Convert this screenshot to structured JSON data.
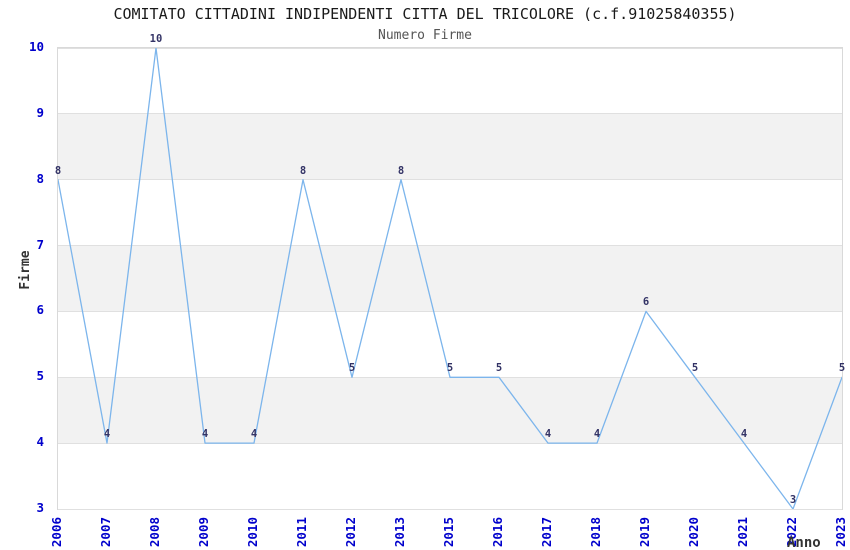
{
  "chart_data": {
    "type": "line",
    "title": "COMITATO CITTADINI INDIPENDENTI CITTA DEL TRICOLORE (c.f.91025840355)",
    "subtitle": "Numero Firme",
    "xlabel": "Anno",
    "ylabel": "Firme",
    "categories": [
      "2006",
      "2007",
      "2008",
      "2009",
      "2010",
      "2011",
      "2012",
      "2013",
      "2015",
      "2016",
      "2017",
      "2018",
      "2019",
      "2020",
      "2021",
      "2022",
      "2023"
    ],
    "values": [
      8,
      4,
      10,
      4,
      4,
      8,
      5,
      8,
      5,
      5,
      4,
      4,
      6,
      5,
      4,
      3,
      5
    ],
    "data_labels_shown": true,
    "ylim": [
      3,
      10
    ],
    "yticks": [
      3,
      4,
      5,
      6,
      7,
      8,
      9,
      10
    ],
    "plot_bands": [
      [
        9,
        8
      ],
      [
        7,
        6
      ],
      [
        5,
        4
      ]
    ],
    "grid": "horizontal-band-edges",
    "legend": "none",
    "markers": "none",
    "x_tick_rotation_deg": 90,
    "colors": {
      "line": "#7cb5ec",
      "tick_label": "#0000cc",
      "data_label": "#333366",
      "axis_title": "#333333",
      "band_fill": "#f2f2f2",
      "gridline": "#e0e0e0",
      "plot_border": "#d9d9d9",
      "title": "#1a1a1a",
      "subtitle": "#555555",
      "background": "#ffffff"
    }
  }
}
